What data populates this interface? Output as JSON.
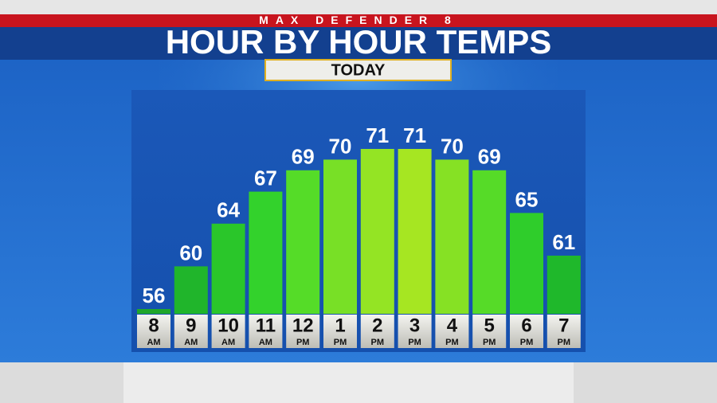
{
  "chart_data": {
    "type": "bar",
    "brand": "MAX DEFENDER 8",
    "title": "HOUR BY HOUR TEMPS",
    "subtitle": "TODAY",
    "categories": [
      "8",
      "9",
      "10",
      "11",
      "12",
      "1",
      "2",
      "3",
      "4",
      "5",
      "6",
      "7"
    ],
    "periods": [
      "AM",
      "AM",
      "AM",
      "AM",
      "PM",
      "PM",
      "PM",
      "PM",
      "PM",
      "PM",
      "PM",
      "PM"
    ],
    "values": [
      56,
      60,
      64,
      67,
      69,
      70,
      71,
      71,
      70,
      69,
      65,
      61
    ],
    "colors": [
      "#1fa62a",
      "#20b52b",
      "#2ac62a",
      "#33d22c",
      "#55dc28",
      "#78e026",
      "#94e424",
      "#a6e622",
      "#86e124",
      "#56db28",
      "#2fcd2b",
      "#1fb82b"
    ]
  }
}
